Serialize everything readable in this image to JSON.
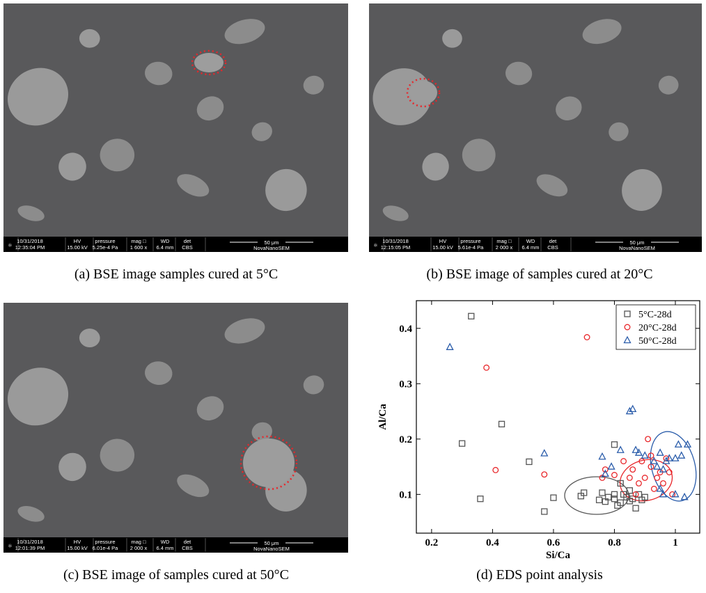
{
  "panels": [
    {
      "date": "10/31/2018",
      "time": "12:35:04 PM",
      "hv_label": "HV",
      "hv": "15.00 kV",
      "pressure_label": "pressure",
      "pressure": "5.25e-4 Pa",
      "mag_label": "mag □",
      "mag": "1 600 x",
      "wd_label": "WD",
      "wd": "6.4 mm",
      "det_label": "det",
      "det": "CBS",
      "scale": "50 μm",
      "instrument": "NovaNanoSEM",
      "caption": "(a) BSE image samples cured at 5°C"
    },
    {
      "date": "10/31/2018",
      "time": "12:15:05 PM",
      "hv_label": "HV",
      "hv": "15.00 kV",
      "pressure_label": "pressure",
      "pressure": "5.61e-4 Pa",
      "mag_label": "mag □",
      "mag": "2 000 x",
      "wd_label": "WD",
      "wd": "6.4 mm",
      "det_label": "det",
      "det": "CBS",
      "scale": "50 μm",
      "instrument": "NovaNanoSEM",
      "caption": "(b) BSE image of samples cured at 20°C"
    },
    {
      "date": "10/31/2018",
      "time": "12:01:39 PM",
      "hv_label": "HV",
      "hv": "15.00 kV",
      "pressure_label": "pressure",
      "pressure": "6.01e-4 Pa",
      "mag_label": "mag □",
      "mag": "2 000 x",
      "wd_label": "WD",
      "wd": "6.4 mm",
      "det_label": "det",
      "det": "CBS",
      "scale": "50 μm",
      "instrument": "NovaNanoSEM",
      "caption": "(c) BSE image of samples cured at 50°C"
    }
  ],
  "chart_data": {
    "type": "scatter",
    "caption": "(d) EDS point analysis",
    "x_label": "Si/Ca",
    "y_label": "Al/Ca",
    "xlim": [
      0.15,
      1.08
    ],
    "ylim": [
      0.03,
      0.45
    ],
    "xticks": [
      0.2,
      0.4,
      0.6,
      0.8,
      1.0
    ],
    "yticks": [
      0.1,
      0.2,
      0.3,
      0.4
    ],
    "legend": "upper right",
    "series": [
      {
        "name": "5°C-28d",
        "color": "#555555",
        "marker": "square",
        "x": [
          0.33,
          0.3,
          0.36,
          0.43,
          0.52,
          0.57,
          0.6,
          0.69,
          0.7,
          0.75,
          0.76,
          0.77,
          0.8,
          0.8,
          0.81,
          0.82,
          0.83,
          0.84,
          0.85,
          0.86,
          0.87,
          0.88,
          0.89,
          0.9,
          0.8,
          0.85,
          0.82,
          0.78
        ],
        "y": [
          0.422,
          0.192,
          0.092,
          0.227,
          0.159,
          0.069,
          0.094,
          0.097,
          0.103,
          0.09,
          0.103,
          0.087,
          0.19,
          0.1,
          0.08,
          0.085,
          0.1,
          0.095,
          0.088,
          0.092,
          0.075,
          0.1,
          0.09,
          0.095,
          0.092,
          0.107,
          0.12,
          0.095
        ]
      },
      {
        "name": "20°C-28d",
        "color": "#e8262a",
        "marker": "circle",
        "x": [
          0.38,
          0.41,
          0.57,
          0.71,
          0.76,
          0.77,
          0.8,
          0.83,
          0.85,
          0.86,
          0.88,
          0.9,
          0.91,
          0.92,
          0.93,
          0.95,
          0.96,
          0.97,
          0.98,
          0.99,
          0.89,
          0.87,
          0.94,
          0.92
        ],
        "y": [
          0.329,
          0.144,
          0.136,
          0.384,
          0.13,
          0.145,
          0.135,
          0.16,
          0.13,
          0.145,
          0.12,
          0.13,
          0.2,
          0.15,
          0.11,
          0.14,
          0.12,
          0.165,
          0.14,
          0.1,
          0.16,
          0.1,
          0.13,
          0.17
        ]
      },
      {
        "name": "50°C-28d",
        "color": "#2a5caa",
        "marker": "triangle",
        "x": [
          0.26,
          0.57,
          0.76,
          0.77,
          0.79,
          0.82,
          0.85,
          0.86,
          0.87,
          0.88,
          0.9,
          0.93,
          0.94,
          0.95,
          0.96,
          0.97,
          0.98,
          1.0,
          1.01,
          1.02,
          1.03,
          1.04,
          0.95,
          0.96,
          1.0
        ],
        "y": [
          0.366,
          0.174,
          0.168,
          0.137,
          0.15,
          0.18,
          0.25,
          0.254,
          0.18,
          0.175,
          0.17,
          0.16,
          0.15,
          0.175,
          0.145,
          0.16,
          0.165,
          0.165,
          0.19,
          0.17,
          0.095,
          0.19,
          0.11,
          0.1,
          0.1
        ]
      }
    ]
  }
}
